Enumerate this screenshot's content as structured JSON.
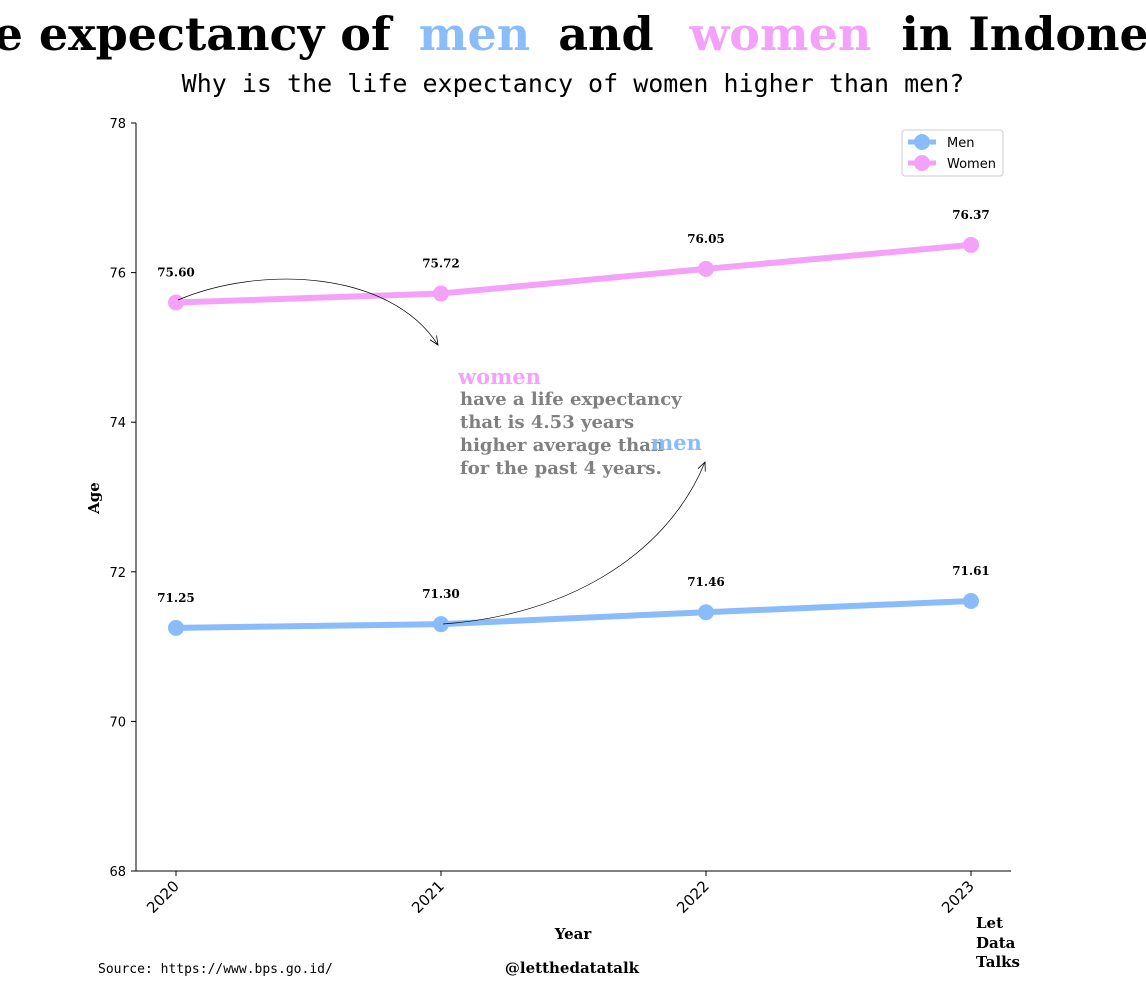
{
  "title": {
    "part1": "Life expectancy of",
    "men_word": "men",
    "part2": "and",
    "women_word": "women",
    "part3": "in Indonesia"
  },
  "subtitle": "Why is the life expectancy of women higher than men?",
  "annotation": {
    "women_word": "women",
    "line1": "have a life expectancy",
    "line2": "that is 4.53 years",
    "line3": "higher average than",
    "men_word": "men",
    "line4": "for the past 4 years."
  },
  "footer": {
    "source": "Source: https://www.bps.go.id/",
    "handle": "@letthedatatalk",
    "brand_line1": "Let",
    "brand_line2": "Data",
    "brand_line3": "Talks"
  },
  "colors": {
    "men": "#89bcf9",
    "women": "#f4a2f9",
    "annotation_text": "#808080"
  },
  "chart_data": {
    "type": "line",
    "x": [
      "2020",
      "2021",
      "2022",
      "2023"
    ],
    "series": [
      {
        "name": "Men",
        "values": [
          71.25,
          71.3,
          71.46,
          71.61
        ],
        "labels": [
          "71.25",
          "71.30",
          "71.46",
          "71.61"
        ]
      },
      {
        "name": "Women",
        "values": [
          75.6,
          75.72,
          76.05,
          76.37
        ],
        "labels": [
          "75.60",
          "75.72",
          "76.05",
          "76.37"
        ]
      }
    ],
    "xlabel": "Year",
    "ylabel": "Age",
    "ylim": [
      68,
      78
    ],
    "yticks": [
      "68",
      "70",
      "72",
      "74",
      "76",
      "78"
    ],
    "grid": false,
    "legend_position": "top-right"
  }
}
